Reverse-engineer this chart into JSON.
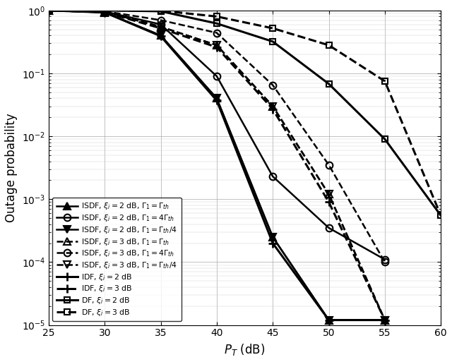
{
  "xlabel": "$P_T$ (dB)",
  "ylabel": "Outage probability",
  "xlim": [
    25,
    60
  ],
  "ylim_log": [
    -5,
    0
  ],
  "x_ticks": [
    25,
    30,
    35,
    40,
    45,
    50,
    55,
    60
  ],
  "background_color": "#ffffff",
  "curves": [
    {
      "label": "ISDF, $\\xi_i = 2$ dB, $\\Gamma_1 = \\Gamma_{th}$",
      "style": "solid",
      "marker": "^",
      "marker_fill": "black",
      "lw": 1.8,
      "x": [
        25,
        30,
        35,
        40,
        45,
        50,
        55
      ],
      "y": [
        1.0,
        0.93,
        0.4,
        0.04,
        0.00025,
        1.2e-05,
        1.2e-05
      ]
    },
    {
      "label": "ISDF, $\\xi_i = 2$ dB, $\\Gamma_1 = 4\\Gamma_{th}$",
      "style": "solid",
      "marker": "o",
      "marker_fill": "none",
      "lw": 1.8,
      "x": [
        25,
        30,
        35,
        40,
        45,
        50,
        55
      ],
      "y": [
        1.0,
        0.96,
        0.6,
        0.09,
        0.0023,
        0.00035,
        0.00011
      ]
    },
    {
      "label": "ISDF, $\\xi_i = 2$ dB, $\\Gamma_1 = \\Gamma_{th}/4$",
      "style": "solid",
      "marker": "v",
      "marker_fill": "black",
      "lw": 1.8,
      "x": [
        25,
        30,
        35,
        40,
        45,
        50,
        55
      ],
      "y": [
        1.0,
        0.93,
        0.4,
        0.04,
        0.00025,
        1.2e-05,
        1.2e-05
      ]
    },
    {
      "label": "ISDF, $\\xi_i = 3$ dB, $\\Gamma_1 = \\Gamma_{th}$",
      "style": "dashed",
      "marker": "^",
      "marker_fill": "none",
      "lw": 1.8,
      "x": [
        25,
        30,
        35,
        40,
        45,
        50,
        55
      ],
      "y": [
        1.0,
        0.95,
        0.55,
        0.28,
        0.03,
        0.0012,
        1.2e-05
      ]
    },
    {
      "label": "ISDF, $\\xi_i = 3$ dB, $\\Gamma_1 = 4\\Gamma_{th}$",
      "style": "dashed",
      "marker": "o",
      "marker_fill": "none",
      "lw": 1.8,
      "x": [
        25,
        30,
        35,
        40,
        45,
        50,
        55
      ],
      "y": [
        1.0,
        0.97,
        0.7,
        0.44,
        0.065,
        0.0035,
        0.0001
      ]
    },
    {
      "label": "ISDF, $\\xi_i = 3$ dB, $\\Gamma_1 = \\Gamma_{th}/4$",
      "style": "dashed",
      "marker": "v",
      "marker_fill": "none",
      "lw": 1.8,
      "x": [
        25,
        30,
        35,
        40,
        45,
        50,
        55
      ],
      "y": [
        1.0,
        0.95,
        0.55,
        0.28,
        0.03,
        0.0012,
        1.2e-05
      ]
    },
    {
      "label": "IDF, $\\xi_i = 2$ dB",
      "style": "solid",
      "marker": "plus",
      "marker_fill": "black",
      "lw": 2.2,
      "x": [
        25,
        30,
        35,
        40,
        45,
        50,
        55
      ],
      "y": [
        1.0,
        0.93,
        0.39,
        0.037,
        0.0002,
        1.2e-05,
        1.2e-05
      ]
    },
    {
      "label": "IDF, $\\xi_i = 3$ dB",
      "style": "dashed",
      "marker": "plus",
      "marker_fill": "none",
      "lw": 2.2,
      "x": [
        25,
        30,
        35,
        40,
        45,
        50,
        55
      ],
      "y": [
        1.0,
        0.94,
        0.52,
        0.26,
        0.027,
        0.0009,
        1.2e-05
      ]
    },
    {
      "label": "DF, $\\xi_i = 2$ dB",
      "style": "solid",
      "marker": "s",
      "marker_fill": "none",
      "lw": 2.2,
      "x": [
        25,
        30,
        35,
        40,
        45,
        50,
        55,
        60
      ],
      "y": [
        1.0,
        1.0,
        0.97,
        0.62,
        0.32,
        0.068,
        0.009,
        0.00055
      ]
    },
    {
      "label": "DF, $\\xi_i = 3$ dB",
      "style": "dashed",
      "marker": "s",
      "marker_fill": "none",
      "lw": 2.2,
      "x": [
        25,
        30,
        35,
        40,
        45,
        50,
        55,
        60
      ],
      "y": [
        1.0,
        1.0,
        0.99,
        0.8,
        0.52,
        0.28,
        0.075,
        0.00055
      ]
    }
  ]
}
